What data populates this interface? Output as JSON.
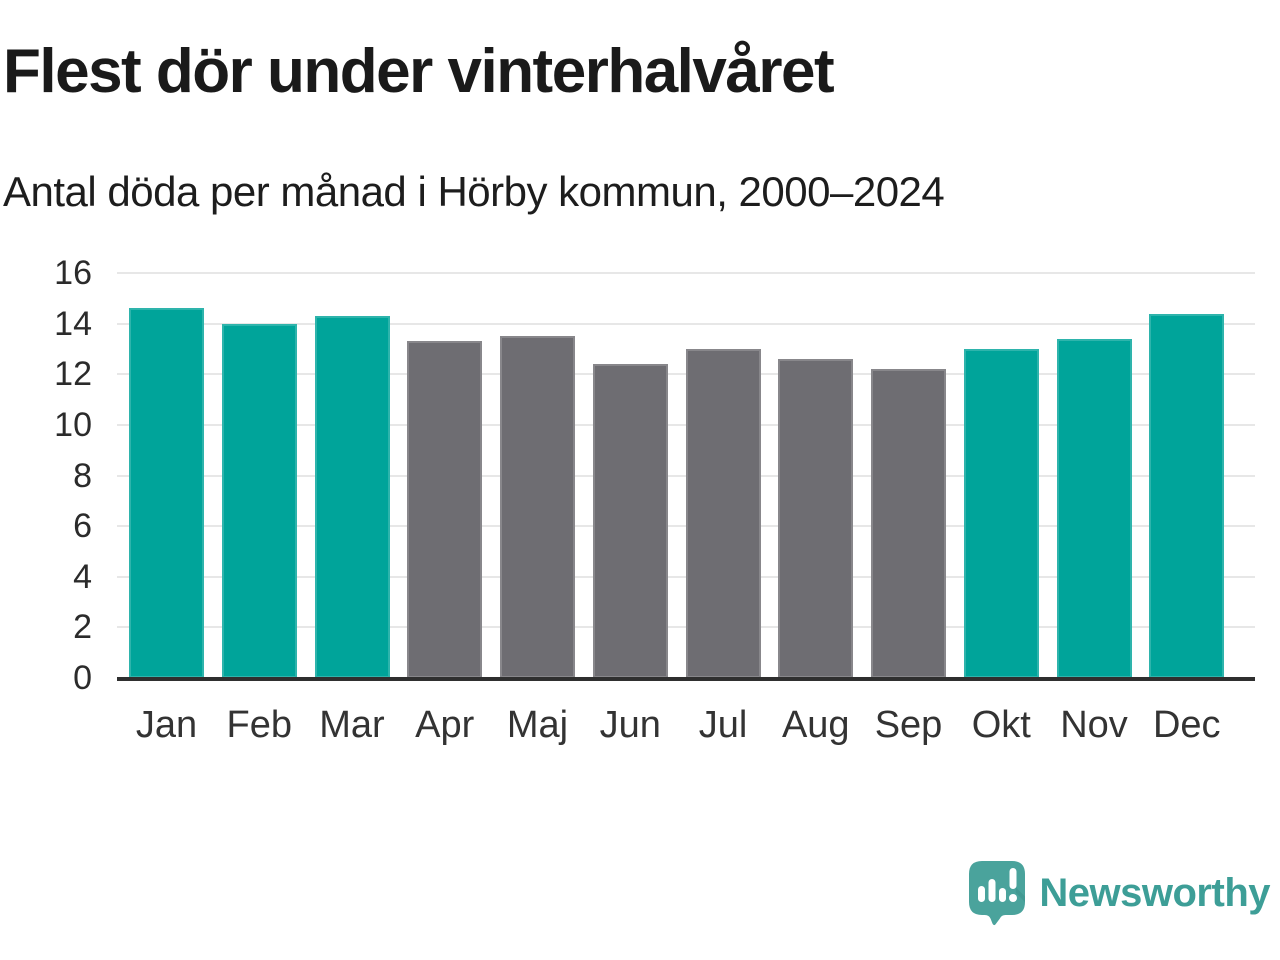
{
  "chart_data": {
    "type": "bar",
    "title": "Flest dör under vinterhalvåret",
    "subtitle": "Antal döda per månad i Hörby kommun, 2000–2024",
    "categories": [
      "Jan",
      "Feb",
      "Mar",
      "Apr",
      "Maj",
      "Jun",
      "Jul",
      "Aug",
      "Sep",
      "Okt",
      "Nov",
      "Dec"
    ],
    "values": [
      14.6,
      14.0,
      14.3,
      13.3,
      13.5,
      12.4,
      13.0,
      12.6,
      12.2,
      13.0,
      13.4,
      14.4
    ],
    "bar_groups": [
      "winter",
      "winter",
      "winter",
      "summer",
      "summer",
      "summer",
      "summer",
      "summer",
      "summer",
      "winter",
      "winter",
      "winter"
    ],
    "group_colors": {
      "winter": "#00a49a",
      "summer": "#6e6d72"
    },
    "xlabel": "",
    "ylabel": "",
    "ylim": [
      0,
      16
    ],
    "yticks": [
      0,
      2,
      4,
      6,
      8,
      10,
      12,
      14,
      16
    ],
    "grid": "horizontal",
    "legend": "none"
  },
  "colors": {
    "accent_teal": "#00a49a",
    "neutral_gray": "#6e6d72",
    "gridline": "#e7e7e7",
    "axis_line": "#2f2f2f",
    "title_text": "#1a1a1a",
    "logo_teal": "#3d9e97"
  },
  "logo": {
    "text": "Newsworthy",
    "icon": "newsworthy-bar-chart-bubble-icon"
  }
}
